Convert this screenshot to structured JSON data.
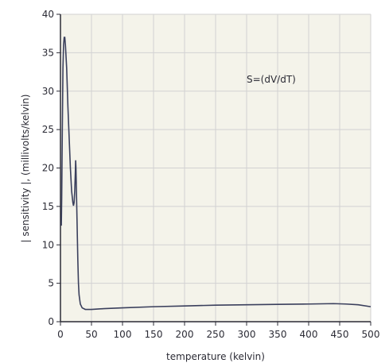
{
  "chart_data": {
    "type": "line",
    "title": "",
    "xlabel": "temperature (kelvin)",
    "ylabel": "| sensitivity |, (millivolts/kelvin)",
    "annotation": "S=(dV/dT)",
    "xlim": [
      0,
      500
    ],
    "ylim": [
      0,
      40
    ],
    "x_ticks": [
      0,
      50,
      100,
      150,
      200,
      250,
      300,
      350,
      400,
      450,
      500
    ],
    "y_ticks": [
      0,
      5,
      10,
      15,
      20,
      25,
      30,
      35,
      40
    ],
    "x_tick_labels": [
      "0",
      "50",
      "100",
      "150",
      "200",
      "250",
      "300",
      "350",
      "400",
      "450",
      "500"
    ],
    "y_tick_labels": [
      "0",
      "5",
      "10",
      "15",
      "20",
      "25",
      "30",
      "35",
      "40"
    ],
    "grid": true,
    "colors": {
      "plot_background": "#f4f3ea",
      "grid": "#d2d2d2",
      "line": "#3a3f5c",
      "axis": "#2b2b35"
    },
    "series": [
      {
        "name": "",
        "points": [
          [
            1.4,
            12.5
          ],
          [
            2,
            16
          ],
          [
            3,
            25
          ],
          [
            4,
            33
          ],
          [
            5,
            36
          ],
          [
            6,
            37
          ],
          [
            7,
            37
          ],
          [
            8,
            36
          ],
          [
            10,
            33
          ],
          [
            12,
            28
          ],
          [
            14,
            24
          ],
          [
            16,
            20
          ],
          [
            18,
            17
          ],
          [
            20,
            15.5
          ],
          [
            21,
            15.1
          ],
          [
            22,
            15.5
          ],
          [
            23,
            17
          ],
          [
            24,
            19.5
          ],
          [
            24.5,
            21
          ],
          [
            25,
            20
          ],
          [
            26,
            16
          ],
          [
            27,
            12
          ],
          [
            28,
            8
          ],
          [
            29,
            5
          ],
          [
            30,
            3.5
          ],
          [
            32,
            2.3
          ],
          [
            35,
            1.8
          ],
          [
            40,
            1.6
          ],
          [
            50,
            1.6
          ],
          [
            70,
            1.7
          ],
          [
            100,
            1.8
          ],
          [
            150,
            1.95
          ],
          [
            200,
            2.05
          ],
          [
            250,
            2.15
          ],
          [
            300,
            2.2
          ],
          [
            350,
            2.25
          ],
          [
            400,
            2.3
          ],
          [
            440,
            2.35
          ],
          [
            460,
            2.3
          ],
          [
            480,
            2.2
          ],
          [
            500,
            1.95
          ]
        ]
      }
    ]
  }
}
